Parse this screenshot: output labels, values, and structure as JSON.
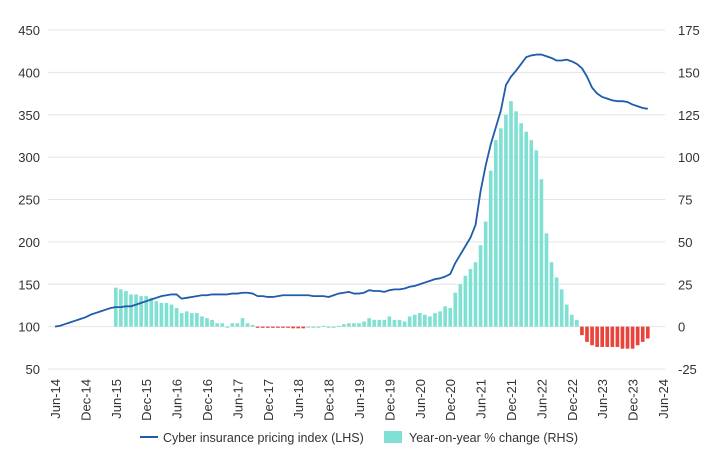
{
  "chart_data": {
    "type": "bar+line",
    "title": "",
    "x_tick_labels": [
      "Jun-14",
      "Dec-14",
      "Jun-15",
      "Dec-15",
      "Jun-16",
      "Dec-16",
      "Jun-17",
      "Dec-17",
      "Jun-18",
      "Dec-18",
      "Jun-19",
      "Dec-19",
      "Jun-20",
      "Dec-20",
      "Jun-21",
      "Dec-21",
      "Jun-22",
      "Dec-22",
      "Jun-23",
      "Dec-23",
      "Jun-24"
    ],
    "x_frequency": "monthly",
    "left_axis": {
      "ylim": [
        50,
        450
      ],
      "ticks": [
        "450",
        "400",
        "350",
        "300",
        "250",
        "200",
        "150",
        "100",
        "50"
      ]
    },
    "right_axis": {
      "ylim": [
        -25,
        175
      ],
      "ticks": [
        "175",
        "150",
        "125",
        "100",
        "75",
        "50",
        "25",
        "0",
        "-25"
      ]
    },
    "grid": true,
    "legend": {
      "placement": "bottom",
      "line_label": "Cyber insurance pricing index (LHS)",
      "bar_label": "Year-on-year % change (RHS)"
    },
    "colors": {
      "line": "#1f5cab",
      "bar_positive": "#80e0d3",
      "bar_negative": "#e9443b",
      "grid": "#e4e4e4"
    },
    "series": [
      {
        "name": "Cyber insurance pricing index (LHS)",
        "type": "line",
        "axis": "left",
        "start": "Jun-14",
        "values": [
          100,
          101,
          103,
          105,
          107,
          109,
          111,
          114,
          116,
          118,
          120,
          122,
          123,
          123,
          124,
          124,
          126,
          128,
          130,
          132,
          134,
          136,
          137,
          138,
          138,
          133,
          134,
          135,
          136,
          137,
          137,
          138,
          138,
          138,
          138,
          139,
          139,
          140,
          140,
          139,
          136,
          136,
          135,
          135,
          136,
          137,
          137,
          137,
          137,
          137,
          137,
          136,
          136,
          136,
          135,
          137,
          139,
          140,
          141,
          139,
          139,
          140,
          143,
          142,
          142,
          141,
          143,
          144,
          144,
          145,
          147,
          148,
          150,
          152,
          154,
          156,
          157,
          159,
          162,
          175,
          185,
          195,
          205,
          220,
          260,
          290,
          315,
          335,
          355,
          385,
          395,
          402,
          410,
          418,
          420,
          421,
          421,
          419,
          417,
          414,
          414,
          415,
          413,
          410,
          405,
          395,
          382,
          375,
          371,
          369,
          367,
          366,
          366,
          365,
          362,
          360,
          358,
          357
        ]
      },
      {
        "name": "Year-on-year % change (RHS)",
        "type": "bar",
        "axis": "right",
        "start": "Jun-15",
        "values": [
          23,
          22,
          21,
          19,
          19,
          18,
          18,
          17,
          15,
          14,
          14,
          13,
          11,
          8,
          9,
          8,
          8,
          6,
          5,
          4,
          2,
          2,
          0,
          2,
          2,
          5,
          2,
          1,
          -0.5,
          -0.5,
          -0.5,
          -0.5,
          -0.5,
          -0.5,
          -0.5,
          -1,
          -1,
          -1,
          0,
          0,
          0,
          0.5,
          0,
          0,
          0.5,
          1.5,
          2,
          2,
          2,
          3,
          5,
          4,
          4,
          4,
          6,
          4,
          4,
          3,
          6,
          7,
          8,
          7,
          6,
          8,
          9,
          12,
          11,
          20,
          25,
          30,
          34,
          38,
          48,
          62,
          92,
          110,
          117,
          125,
          133,
          127,
          120,
          115,
          110,
          104,
          87,
          55,
          38,
          29,
          22,
          13,
          7,
          4,
          -5,
          -9,
          -11,
          -12,
          -12,
          -12,
          -12,
          -12,
          -13,
          -13,
          -13,
          -11,
          -9,
          -7
        ]
      }
    ]
  }
}
